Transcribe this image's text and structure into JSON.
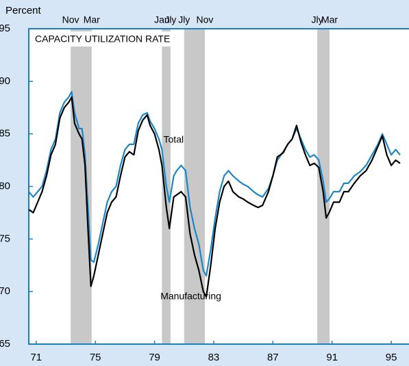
{
  "chart_data": {
    "type": "line",
    "title": "CAPACITY UTILIZATION RATE",
    "y_label": "Percent",
    "annotations": [
      {
        "text": "Total",
        "x": 1980.1,
        "y": 84.4
      },
      {
        "text": "Manufacturing",
        "x": 1979.9,
        "y": 69.5
      }
    ],
    "x": [
      1971.0,
      1971.3,
      1971.6,
      1971.9,
      1972.2,
      1972.5,
      1972.8,
      1973.1,
      1973.4,
      1973.7,
      1973.9,
      1974.1,
      1974.4,
      1974.6,
      1974.8,
      1975.0,
      1975.2,
      1975.4,
      1975.7,
      1976.0,
      1976.3,
      1976.6,
      1976.9,
      1977.2,
      1977.5,
      1977.8,
      1978.1,
      1978.4,
      1978.7,
      1979.0,
      1979.2,
      1979.5,
      1979.8,
      1980.0,
      1980.3,
      1980.5,
      1980.8,
      1981.0,
      1981.3,
      1981.6,
      1981.9,
      1982.2,
      1982.5,
      1982.8,
      1983.0,
      1983.3,
      1983.6,
      1983.9,
      1984.2,
      1984.5,
      1984.8,
      1985.2,
      1985.5,
      1985.8,
      1986.2,
      1986.5,
      1986.8,
      1987.2,
      1987.5,
      1987.8,
      1988.2,
      1988.5,
      1988.8,
      1989.1,
      1989.4,
      1989.7,
      1990.0,
      1990.3,
      1990.6,
      1990.9,
      1991.1,
      1991.3,
      1991.6,
      1992.0,
      1992.3,
      1992.6,
      1993.0,
      1993.4,
      1993.8,
      1994.2,
      1994.6,
      1994.9,
      1995.2,
      1995.5,
      1995.8,
      1996.1
    ],
    "series": [
      {
        "name": "Total",
        "color": "#1a86c8",
        "values": [
          79.5,
          79,
          79.5,
          80,
          81.5,
          83.5,
          84.5,
          87,
          88,
          88.5,
          89,
          87,
          85.5,
          85.5,
          83,
          78,
          73,
          72.8,
          74.5,
          76.5,
          78.5,
          79.5,
          80,
          82,
          83.5,
          84,
          84,
          86,
          86.8,
          87,
          86.2,
          85.5,
          84.5,
          83.5,
          80,
          78.5,
          81,
          81.5,
          82,
          81.5,
          78,
          76,
          74.5,
          72,
          71.5,
          74,
          77,
          79.5,
          81,
          81.5,
          81,
          80.5,
          80.2,
          80,
          79.5,
          79.2,
          79,
          79.8,
          81,
          82.5,
          83.3,
          84,
          84.5,
          85.5,
          84.5,
          83.5,
          82.8,
          83,
          82.5,
          80.5,
          78.5,
          78.8,
          79.5,
          79.5,
          80.3,
          80.3,
          81,
          81.4,
          82,
          83,
          84,
          85,
          84,
          83,
          83.5,
          83
        ]
      },
      {
        "name": "Manufacturing",
        "color": "#000000",
        "values": [
          77.8,
          77.5,
          78.5,
          79.5,
          81,
          83,
          84,
          86.5,
          87.5,
          88,
          88.5,
          86,
          85,
          84.5,
          82,
          76,
          70.5,
          71.5,
          73.5,
          75.5,
          77.5,
          78.5,
          79,
          81,
          82.8,
          83.3,
          83,
          85.3,
          86.3,
          86.8,
          85.8,
          85,
          83.5,
          82,
          78,
          76,
          79,
          79.2,
          79.5,
          79,
          75.5,
          73.5,
          72,
          70,
          69.5,
          72.5,
          76,
          78.5,
          80,
          80.5,
          79.5,
          79,
          78.8,
          78.5,
          78.2,
          78,
          78.2,
          79.5,
          81,
          82.8,
          83.2,
          84,
          84.5,
          85.8,
          84.2,
          83,
          82,
          82.2,
          81.8,
          79.5,
          77,
          77.5,
          78.5,
          78.5,
          79.5,
          79.5,
          80.3,
          81,
          81.5,
          82.5,
          83.8,
          84.8,
          83,
          82,
          82.5,
          82.2
        ]
      }
    ],
    "recessions": [
      {
        "start": 1973.83,
        "end": 1975.25,
        "start_label": "Nov",
        "end_label": "Mar"
      },
      {
        "start": 1980.0,
        "end": 1980.58,
        "start_label": "Jan",
        "end_label": "Jly"
      },
      {
        "start": 1981.5,
        "end": 1982.9,
        "start_label": "Jly",
        "end_label": "Nov"
      },
      {
        "start": 1990.5,
        "end": 1991.33,
        "start_label": "Jly",
        "end_label": "Mar"
      }
    ],
    "xlim": [
      1971.0,
      1996.7
    ],
    "xticks": [
      {
        "value": 1971.5,
        "label": "71"
      },
      {
        "value": 1975.5,
        "label": "75"
      },
      {
        "value": 1979.5,
        "label": "79"
      },
      {
        "value": 1983.5,
        "label": "83"
      },
      {
        "value": 1987.5,
        "label": "87"
      },
      {
        "value": 1991.5,
        "label": "91"
      },
      {
        "value": 1995.5,
        "label": "95"
      }
    ],
    "ylim": [
      65,
      95
    ],
    "yticks": [
      65,
      70,
      75,
      80,
      85,
      90,
      95
    ]
  }
}
